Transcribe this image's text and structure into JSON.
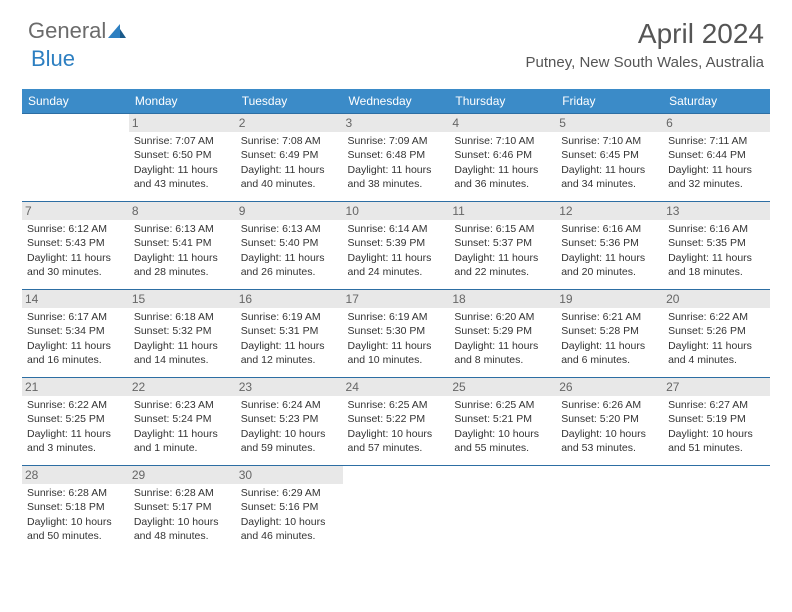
{
  "logo": {
    "general": "General",
    "blue": "Blue"
  },
  "title": "April 2024",
  "location": "Putney, New South Wales, Australia",
  "colors": {
    "header_bg": "#3b8bc8",
    "header_text": "#ffffff",
    "row_border": "#2d6ea3",
    "daynum_bg": "#e8e8e8",
    "text": "#333333",
    "logo_gray": "#6b6b6b",
    "logo_blue": "#2d7fc1"
  },
  "weekdays": [
    "Sunday",
    "Monday",
    "Tuesday",
    "Wednesday",
    "Thursday",
    "Friday",
    "Saturday"
  ],
  "weeks": [
    [
      null,
      {
        "d": "1",
        "sr": "Sunrise: 7:07 AM",
        "ss": "Sunset: 6:50 PM",
        "dl1": "Daylight: 11 hours",
        "dl2": "and 43 minutes."
      },
      {
        "d": "2",
        "sr": "Sunrise: 7:08 AM",
        "ss": "Sunset: 6:49 PM",
        "dl1": "Daylight: 11 hours",
        "dl2": "and 40 minutes."
      },
      {
        "d": "3",
        "sr": "Sunrise: 7:09 AM",
        "ss": "Sunset: 6:48 PM",
        "dl1": "Daylight: 11 hours",
        "dl2": "and 38 minutes."
      },
      {
        "d": "4",
        "sr": "Sunrise: 7:10 AM",
        "ss": "Sunset: 6:46 PM",
        "dl1": "Daylight: 11 hours",
        "dl2": "and 36 minutes."
      },
      {
        "d": "5",
        "sr": "Sunrise: 7:10 AM",
        "ss": "Sunset: 6:45 PM",
        "dl1": "Daylight: 11 hours",
        "dl2": "and 34 minutes."
      },
      {
        "d": "6",
        "sr": "Sunrise: 7:11 AM",
        "ss": "Sunset: 6:44 PM",
        "dl1": "Daylight: 11 hours",
        "dl2": "and 32 minutes."
      }
    ],
    [
      {
        "d": "7",
        "sr": "Sunrise: 6:12 AM",
        "ss": "Sunset: 5:43 PM",
        "dl1": "Daylight: 11 hours",
        "dl2": "and 30 minutes."
      },
      {
        "d": "8",
        "sr": "Sunrise: 6:13 AM",
        "ss": "Sunset: 5:41 PM",
        "dl1": "Daylight: 11 hours",
        "dl2": "and 28 minutes."
      },
      {
        "d": "9",
        "sr": "Sunrise: 6:13 AM",
        "ss": "Sunset: 5:40 PM",
        "dl1": "Daylight: 11 hours",
        "dl2": "and 26 minutes."
      },
      {
        "d": "10",
        "sr": "Sunrise: 6:14 AM",
        "ss": "Sunset: 5:39 PM",
        "dl1": "Daylight: 11 hours",
        "dl2": "and 24 minutes."
      },
      {
        "d": "11",
        "sr": "Sunrise: 6:15 AM",
        "ss": "Sunset: 5:37 PM",
        "dl1": "Daylight: 11 hours",
        "dl2": "and 22 minutes."
      },
      {
        "d": "12",
        "sr": "Sunrise: 6:16 AM",
        "ss": "Sunset: 5:36 PM",
        "dl1": "Daylight: 11 hours",
        "dl2": "and 20 minutes."
      },
      {
        "d": "13",
        "sr": "Sunrise: 6:16 AM",
        "ss": "Sunset: 5:35 PM",
        "dl1": "Daylight: 11 hours",
        "dl2": "and 18 minutes."
      }
    ],
    [
      {
        "d": "14",
        "sr": "Sunrise: 6:17 AM",
        "ss": "Sunset: 5:34 PM",
        "dl1": "Daylight: 11 hours",
        "dl2": "and 16 minutes."
      },
      {
        "d": "15",
        "sr": "Sunrise: 6:18 AM",
        "ss": "Sunset: 5:32 PM",
        "dl1": "Daylight: 11 hours",
        "dl2": "and 14 minutes."
      },
      {
        "d": "16",
        "sr": "Sunrise: 6:19 AM",
        "ss": "Sunset: 5:31 PM",
        "dl1": "Daylight: 11 hours",
        "dl2": "and 12 minutes."
      },
      {
        "d": "17",
        "sr": "Sunrise: 6:19 AM",
        "ss": "Sunset: 5:30 PM",
        "dl1": "Daylight: 11 hours",
        "dl2": "and 10 minutes."
      },
      {
        "d": "18",
        "sr": "Sunrise: 6:20 AM",
        "ss": "Sunset: 5:29 PM",
        "dl1": "Daylight: 11 hours",
        "dl2": "and 8 minutes."
      },
      {
        "d": "19",
        "sr": "Sunrise: 6:21 AM",
        "ss": "Sunset: 5:28 PM",
        "dl1": "Daylight: 11 hours",
        "dl2": "and 6 minutes."
      },
      {
        "d": "20",
        "sr": "Sunrise: 6:22 AM",
        "ss": "Sunset: 5:26 PM",
        "dl1": "Daylight: 11 hours",
        "dl2": "and 4 minutes."
      }
    ],
    [
      {
        "d": "21",
        "sr": "Sunrise: 6:22 AM",
        "ss": "Sunset: 5:25 PM",
        "dl1": "Daylight: 11 hours",
        "dl2": "and 3 minutes."
      },
      {
        "d": "22",
        "sr": "Sunrise: 6:23 AM",
        "ss": "Sunset: 5:24 PM",
        "dl1": "Daylight: 11 hours",
        "dl2": "and 1 minute."
      },
      {
        "d": "23",
        "sr": "Sunrise: 6:24 AM",
        "ss": "Sunset: 5:23 PM",
        "dl1": "Daylight: 10 hours",
        "dl2": "and 59 minutes."
      },
      {
        "d": "24",
        "sr": "Sunrise: 6:25 AM",
        "ss": "Sunset: 5:22 PM",
        "dl1": "Daylight: 10 hours",
        "dl2": "and 57 minutes."
      },
      {
        "d": "25",
        "sr": "Sunrise: 6:25 AM",
        "ss": "Sunset: 5:21 PM",
        "dl1": "Daylight: 10 hours",
        "dl2": "and 55 minutes."
      },
      {
        "d": "26",
        "sr": "Sunrise: 6:26 AM",
        "ss": "Sunset: 5:20 PM",
        "dl1": "Daylight: 10 hours",
        "dl2": "and 53 minutes."
      },
      {
        "d": "27",
        "sr": "Sunrise: 6:27 AM",
        "ss": "Sunset: 5:19 PM",
        "dl1": "Daylight: 10 hours",
        "dl2": "and 51 minutes."
      }
    ],
    [
      {
        "d": "28",
        "sr": "Sunrise: 6:28 AM",
        "ss": "Sunset: 5:18 PM",
        "dl1": "Daylight: 10 hours",
        "dl2": "and 50 minutes."
      },
      {
        "d": "29",
        "sr": "Sunrise: 6:28 AM",
        "ss": "Sunset: 5:17 PM",
        "dl1": "Daylight: 10 hours",
        "dl2": "and 48 minutes."
      },
      {
        "d": "30",
        "sr": "Sunrise: 6:29 AM",
        "ss": "Sunset: 5:16 PM",
        "dl1": "Daylight: 10 hours",
        "dl2": "and 46 minutes."
      },
      null,
      null,
      null,
      null
    ]
  ]
}
